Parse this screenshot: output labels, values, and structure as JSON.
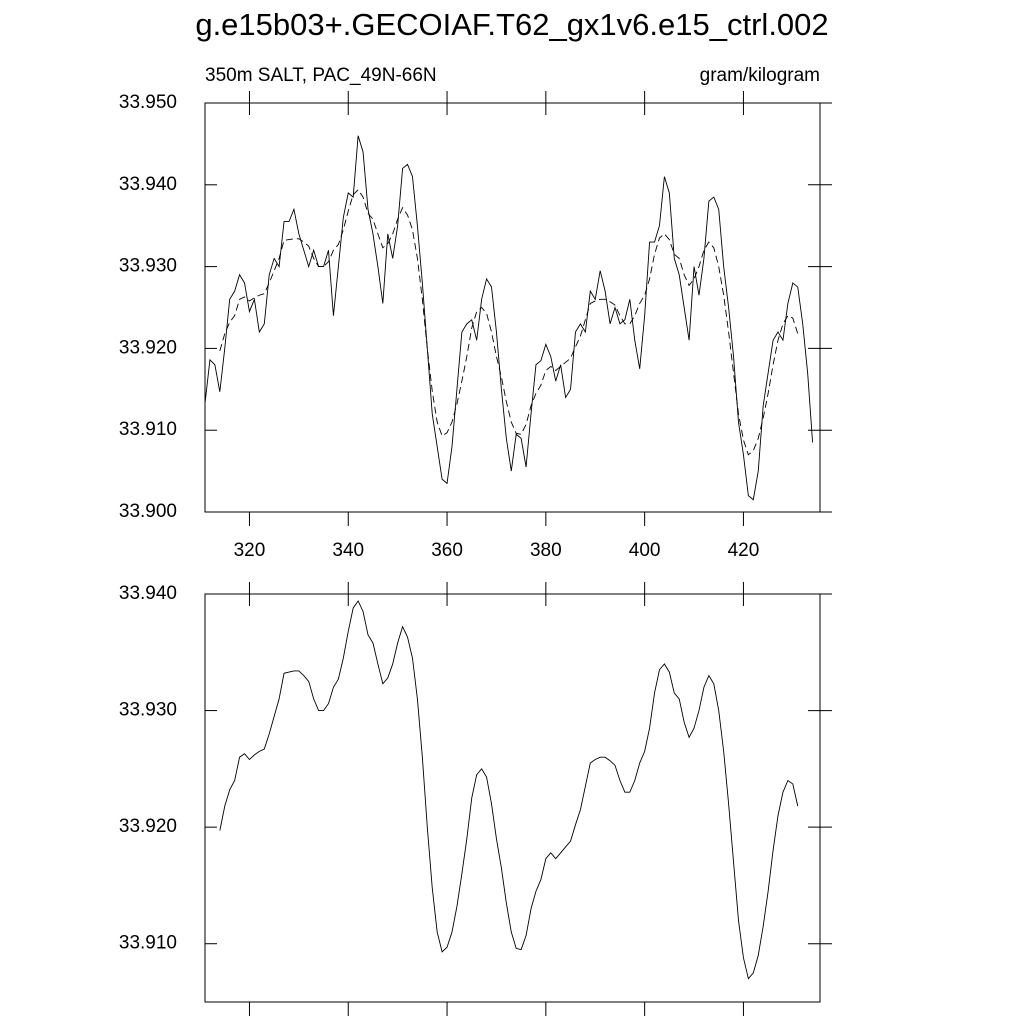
{
  "chart_data": [
    {
      "type": "line",
      "title": "g.e15b03+.GECOIAF.T62_gx1v6.e15_ctrl.002",
      "left_string": "350m SALT, PAC_49N-66N",
      "right_string": "gram/kilogram",
      "xlim": [
        311,
        435.5
      ],
      "xticks": [
        320,
        340,
        360,
        380,
        400,
        420
      ],
      "xtick_labels": true,
      "ylim": [
        33.9,
        33.95
      ],
      "yticks": [
        {
          "value": 33.9,
          "label": "33.900"
        },
        {
          "value": 33.91,
          "label": "33.910"
        },
        {
          "value": 33.92,
          "label": "33.920"
        },
        {
          "value": 33.93,
          "label": "33.930"
        },
        {
          "value": 33.94,
          "label": "33.940"
        },
        {
          "value": 33.95,
          "label": "33.950"
        }
      ],
      "x": [
        311,
        312,
        313,
        314,
        315,
        316,
        317,
        318,
        319,
        320,
        321,
        322,
        323,
        324,
        325,
        326,
        327,
        328,
        329,
        330,
        331,
        332,
        333,
        334,
        335,
        336,
        337,
        338,
        339,
        340,
        341,
        342,
        343,
        344,
        345,
        346,
        347,
        348,
        349,
        350,
        351,
        352,
        353,
        354,
        355,
        356,
        357,
        358,
        359,
        360,
        361,
        362,
        363,
        364,
        365,
        366,
        367,
        368,
        369,
        370,
        371,
        372,
        373,
        374,
        375,
        376,
        377,
        378,
        379,
        380,
        381,
        382,
        383,
        384,
        385,
        386,
        387,
        388,
        389,
        390,
        391,
        392,
        393,
        394,
        395,
        396,
        397,
        398,
        399,
        400,
        401,
        402,
        403,
        404,
        405,
        406,
        407,
        408,
        409,
        410,
        411,
        412,
        413,
        414,
        415,
        416,
        417,
        418,
        419,
        420,
        421,
        422,
        423,
        424,
        425,
        426,
        427,
        428,
        429,
        430,
        431,
        432,
        433,
        434
      ],
      "series": [
        {
          "color": "#000000",
          "linestyle": "solid",
          "values": [
            33.9133,
            33.9186,
            33.918,
            33.9147,
            33.92,
            33.926,
            33.927,
            33.929,
            33.928,
            33.9245,
            33.926,
            33.922,
            33.923,
            33.929,
            33.931,
            33.93,
            33.9355,
            33.9355,
            33.937,
            33.934,
            33.932,
            33.93,
            33.932,
            33.93,
            33.93,
            33.932,
            33.924,
            33.93,
            33.936,
            33.939,
            33.9385,
            33.946,
            33.944,
            33.937,
            33.934,
            33.93,
            33.9255,
            33.934,
            33.931,
            33.935,
            33.942,
            33.9425,
            33.941,
            33.935,
            33.928,
            33.92,
            33.912,
            33.908,
            33.904,
            33.9035,
            33.908,
            33.915,
            33.922,
            33.923,
            33.9235,
            33.921,
            33.926,
            33.9285,
            33.9275,
            33.922,
            33.915,
            33.909,
            33.905,
            33.9095,
            33.909,
            33.9055,
            33.912,
            33.918,
            33.9185,
            33.9205,
            33.919,
            33.916,
            33.918,
            33.914,
            33.915,
            33.922,
            33.923,
            33.922,
            33.927,
            33.926,
            33.9295,
            33.927,
            33.923,
            33.925,
            33.923,
            33.9235,
            33.926,
            33.921,
            33.9175,
            33.924,
            33.933,
            33.933,
            33.935,
            33.941,
            33.939,
            33.931,
            33.929,
            33.925,
            33.921,
            33.93,
            33.9265,
            33.931,
            33.938,
            33.9385,
            33.937,
            33.93,
            33.925,
            33.919,
            33.911,
            33.907,
            33.902,
            33.9015,
            33.905,
            33.913,
            33.917,
            33.921,
            33.922,
            33.921,
            33.9255,
            33.928,
            33.9275,
            33.923,
            33.917,
            33.9085
          ]
        },
        {
          "color": "#000000",
          "linestyle": "dashed",
          "values": [
            null,
            null,
            null,
            33.9197,
            33.9218,
            33.9232,
            33.924,
            33.926,
            33.9263,
            33.9258,
            33.9262,
            33.9265,
            33.9267,
            33.928,
            33.9295,
            33.931,
            33.9332,
            33.9333,
            33.9334,
            33.9334,
            33.933,
            33.9325,
            33.931,
            33.93,
            33.93,
            33.9306,
            33.932,
            33.9327,
            33.9345,
            33.9368,
            33.9388,
            33.9394,
            33.9385,
            33.9365,
            33.9358,
            33.934,
            33.9323,
            33.9328,
            33.934,
            33.9358,
            33.9372,
            33.9363,
            33.9345,
            33.931,
            33.926,
            33.92,
            33.9148,
            33.911,
            33.9093,
            33.9097,
            33.911,
            33.9132,
            33.916,
            33.919,
            33.9225,
            33.9245,
            33.925,
            33.9243,
            33.922,
            33.919,
            33.9165,
            33.9135,
            33.911,
            33.9096,
            33.9095,
            33.9107,
            33.913,
            33.9145,
            33.9155,
            33.9173,
            33.9178,
            33.9173,
            33.9178,
            33.9183,
            33.9188,
            33.9202,
            33.9215,
            33.9235,
            33.9255,
            33.9258,
            33.926,
            33.926,
            33.9257,
            33.9253,
            33.924,
            33.923,
            33.923,
            33.924,
            33.9255,
            33.9265,
            33.9285,
            33.9315,
            33.9335,
            33.934,
            33.9333,
            33.9315,
            33.931,
            33.929,
            33.9277,
            33.9285,
            33.93,
            33.932,
            33.933,
            33.9323,
            33.93,
            33.9265,
            33.922,
            33.917,
            33.912,
            33.9088,
            33.907,
            33.9075,
            33.909,
            33.9115,
            33.9145,
            33.918,
            33.921,
            33.923,
            33.924,
            33.9237,
            33.9218,
            null,
            null,
            null
          ]
        }
      ]
    },
    {
      "type": "line",
      "xlim": [
        311,
        435.5
      ],
      "xticks": [
        320,
        340,
        360,
        380,
        400,
        420
      ],
      "xtick_labels": false,
      "ylim": [
        33.905,
        33.94
      ],
      "yticks": [
        {
          "value": 33.91,
          "label": "33.910"
        },
        {
          "value": 33.92,
          "label": "33.920"
        },
        {
          "value": 33.93,
          "label": "33.930"
        },
        {
          "value": 33.94,
          "label": "33.940"
        }
      ],
      "x": [
        314,
        315,
        316,
        317,
        318,
        319,
        320,
        321,
        322,
        323,
        324,
        325,
        326,
        327,
        328,
        329,
        330,
        331,
        332,
        333,
        334,
        335,
        336,
        337,
        338,
        339,
        340,
        341,
        342,
        343,
        344,
        345,
        346,
        347,
        348,
        349,
        350,
        351,
        352,
        353,
        354,
        355,
        356,
        357,
        358,
        359,
        360,
        361,
        362,
        363,
        364,
        365,
        366,
        367,
        368,
        369,
        370,
        371,
        372,
        373,
        374,
        375,
        376,
        377,
        378,
        379,
        380,
        381,
        382,
        383,
        384,
        385,
        386,
        387,
        388,
        389,
        390,
        391,
        392,
        393,
        394,
        395,
        396,
        397,
        398,
        399,
        400,
        401,
        402,
        403,
        404,
        405,
        406,
        407,
        408,
        409,
        410,
        411,
        412,
        413,
        414,
        415,
        416,
        417,
        418,
        419,
        420,
        421,
        422,
        423,
        424,
        425,
        426,
        427,
        428,
        429,
        430,
        431
      ],
      "series": [
        {
          "color": "#000000",
          "linestyle": "solid",
          "values": [
            33.9197,
            33.9218,
            33.9232,
            33.924,
            33.926,
            33.9263,
            33.9258,
            33.9262,
            33.9265,
            33.9267,
            33.928,
            33.9295,
            33.931,
            33.9332,
            33.9333,
            33.9334,
            33.9334,
            33.933,
            33.9325,
            33.931,
            33.93,
            33.93,
            33.9306,
            33.932,
            33.9327,
            33.9345,
            33.9368,
            33.9388,
            33.9394,
            33.9385,
            33.9365,
            33.9358,
            33.934,
            33.9323,
            33.9328,
            33.934,
            33.9358,
            33.9372,
            33.9363,
            33.9345,
            33.931,
            33.926,
            33.92,
            33.9148,
            33.911,
            33.9093,
            33.9097,
            33.911,
            33.9132,
            33.916,
            33.919,
            33.9225,
            33.9245,
            33.925,
            33.9243,
            33.922,
            33.919,
            33.9165,
            33.9135,
            33.911,
            33.9096,
            33.9095,
            33.9107,
            33.913,
            33.9145,
            33.9155,
            33.9173,
            33.9178,
            33.9173,
            33.9178,
            33.9183,
            33.9188,
            33.9202,
            33.9215,
            33.9235,
            33.9255,
            33.9258,
            33.926,
            33.926,
            33.9257,
            33.9253,
            33.924,
            33.923,
            33.923,
            33.924,
            33.9255,
            33.9265,
            33.9285,
            33.9315,
            33.9335,
            33.934,
            33.9333,
            33.9315,
            33.931,
            33.929,
            33.9277,
            33.9285,
            33.93,
            33.932,
            33.933,
            33.9323,
            33.93,
            33.9265,
            33.922,
            33.917,
            33.912,
            33.9088,
            33.907,
            33.9075,
            33.909,
            33.9115,
            33.9145,
            33.918,
            33.921,
            33.923,
            33.924,
            33.9237,
            33.9218
          ]
        }
      ]
    }
  ]
}
